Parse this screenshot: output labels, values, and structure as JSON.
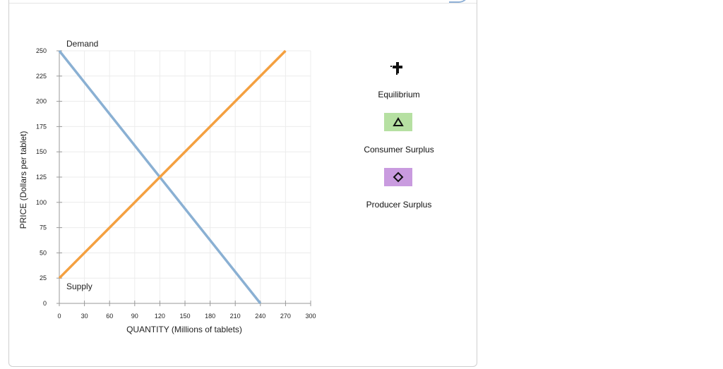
{
  "chart_data": {
    "type": "line",
    "xlabel": "QUANTITY (Millions of tablets)",
    "ylabel": "PRICE (Dollars per tablet)",
    "xlim": [
      0,
      300
    ],
    "ylim": [
      0,
      250
    ],
    "x_ticks": [
      0,
      30,
      60,
      90,
      120,
      150,
      180,
      210,
      240,
      270,
      300
    ],
    "y_ticks": [
      0,
      25,
      50,
      75,
      100,
      125,
      150,
      175,
      200,
      225,
      250
    ],
    "grid": true,
    "series": [
      {
        "name": "Demand",
        "color": "#8ab0d3",
        "points": [
          [
            0,
            250
          ],
          [
            240,
            0
          ]
        ]
      },
      {
        "name": "Supply",
        "color": "#f4a040",
        "points": [
          [
            0,
            25
          ],
          [
            270,
            250
          ]
        ]
      }
    ]
  },
  "legend": {
    "equilibrium": {
      "label": "Equilibrium",
      "icon": "plus-icon",
      "color": "#111111"
    },
    "consumer_surplus": {
      "label": "Consumer Surplus",
      "icon": "triangle-icon",
      "color": "#b6e0a2"
    },
    "producer_surplus": {
      "label": "Producer Surplus",
      "icon": "diamond-icon",
      "color": "#c99bdf"
    }
  }
}
